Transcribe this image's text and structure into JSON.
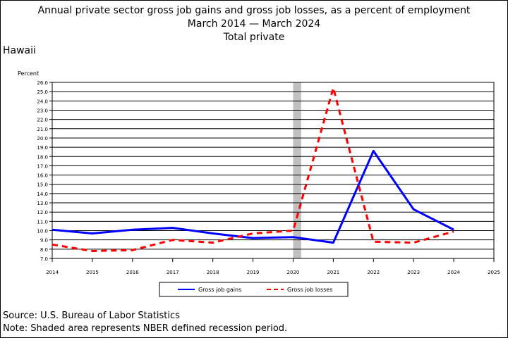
{
  "header": {
    "title": "Annual private sector gross job gains and gross job losses, as a percent of employment",
    "subtitle": "March 2014 — March 2024",
    "industry": "Total private",
    "region": "Hawaii"
  },
  "footer": {
    "source": "Source: U.S. Bureau of Labor Statistics",
    "note": "Note: Shaded area represents NBER defined recession period."
  },
  "chart_data": {
    "type": "line",
    "ylabel": "Percent",
    "xlim": [
      2014,
      2025
    ],
    "ylim": [
      7.0,
      26.0
    ],
    "ytick_step": 1.0,
    "xticks": [
      2014,
      2015,
      2016,
      2017,
      2018,
      2019,
      2020,
      2021,
      2022,
      2023,
      2024,
      2025
    ],
    "grid": "horizontal",
    "recession_shading": {
      "start": 2020.0,
      "end": 2020.2,
      "color": "#c0c0c0"
    },
    "legend_position": "bottom-center",
    "series": [
      {
        "name": "Gross job gains",
        "color": "#0000ff",
        "style": "solid",
        "x": [
          2014,
          2015,
          2016,
          2017,
          2018,
          2019,
          2020,
          2021,
          2022,
          2023,
          2024
        ],
        "values": [
          10.1,
          9.7,
          10.1,
          10.3,
          9.7,
          9.2,
          9.3,
          8.7,
          18.6,
          12.3,
          10.1
        ]
      },
      {
        "name": "Gross job losses",
        "color": "#ff0000",
        "style": "dashed",
        "x": [
          2014,
          2015,
          2016,
          2017,
          2018,
          2019,
          2020,
          2021,
          2022,
          2023,
          2024
        ],
        "values": [
          8.5,
          7.8,
          7.9,
          9.0,
          8.7,
          9.7,
          10.0,
          25.4,
          8.8,
          8.7,
          9.9
        ]
      }
    ]
  }
}
